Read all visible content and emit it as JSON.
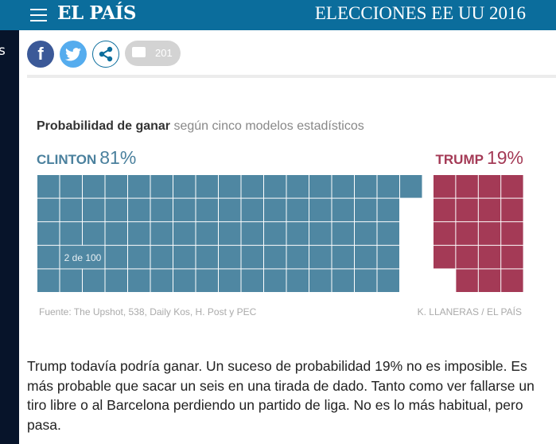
{
  "header": {
    "logo": "EL PAÍS",
    "section": "ELECCIONES EE UU 2016"
  },
  "share": {
    "facebook": "f",
    "comments_count": "201"
  },
  "chart_data": {
    "type": "waffle",
    "title": "Probabilidad de ganar",
    "subtitle": "según cinco modelos estadísticos",
    "total": 100,
    "series": [
      {
        "name": "CLINTON",
        "label": "81%",
        "value": 81,
        "color": "#4f87a2"
      },
      {
        "name": "TRUMP",
        "label": "19%",
        "value": 19,
        "color": "#a43a56"
      }
    ],
    "annotation": "2 de 100",
    "source": "Fuente: The Upshot, 538, Daily Kos, H. Post y PEC",
    "credit": "K. LLANERAS / EL PAÍS"
  },
  "article": {
    "paragraph": "Trump todavía podría ganar. Un suceso de probabilidad 19% no es imposible. Es más probable que sacar un seis en una tirada de dado. Tanto como ver fallarse un tiro libre o al Barcelona perdiendo un partido de liga. No es lo más habitual, pero pasa."
  },
  "sidebar": {
    "fragment": "s"
  }
}
